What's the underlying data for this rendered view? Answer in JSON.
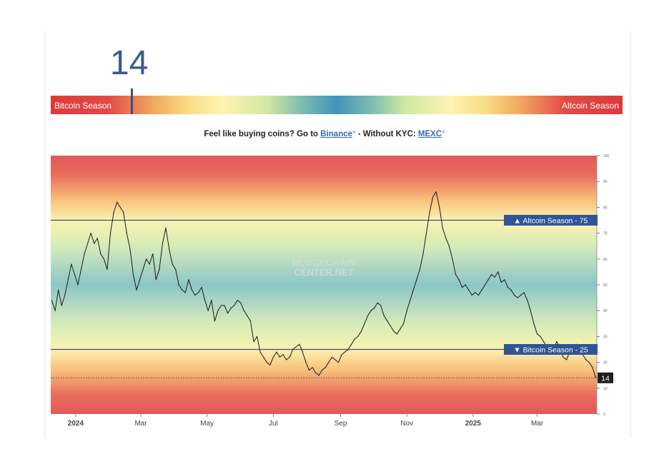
{
  "header": {
    "index_value": "14",
    "left_label": "Bitcoin Season",
    "right_label": "Altcoin Season"
  },
  "promo": {
    "lead": "Feel like buying coins? Go to ",
    "link1": "Binance",
    "asterisk": "*",
    "mid": " - Without KYC: ",
    "link2": "MEXC"
  },
  "colors": {
    "line": "#1a1a1a",
    "threshold_line": "#34528a",
    "badge_bg": "#2f5596",
    "current_badge_bg": "#1e1e1e",
    "bitcoin_zone": "#e05a5a",
    "altcoin_zone": "#e05a5a",
    "neutral_zone": "#86c4c4"
  },
  "chart_data": {
    "type": "line",
    "watermark": [
      "BL⊙CKCHAIN",
      "CENTER.NET"
    ],
    "ylim": [
      0,
      100
    ],
    "yticks": [
      0,
      10,
      20,
      30,
      40,
      50,
      60,
      70,
      80,
      90,
      100
    ],
    "ytick_labels": [
      "0",
      "10",
      "20",
      "30",
      "40",
      "50",
      "60",
      "70",
      "80",
      "90",
      "100"
    ],
    "xlim": [
      "2023-12-09",
      "2025-04-25"
    ],
    "xticks": [
      {
        "date": "2024-01-01",
        "label": "2024",
        "bold": true
      },
      {
        "date": "2024-03-01",
        "label": "Mar"
      },
      {
        "date": "2024-05-01",
        "label": "May"
      },
      {
        "date": "2024-07-01",
        "label": "Jul"
      },
      {
        "date": "2024-09-01",
        "label": "Sep"
      },
      {
        "date": "2024-11-01",
        "label": "Nov"
      },
      {
        "date": "2025-01-01",
        "label": "2025",
        "bold": true
      },
      {
        "date": "2025-03-01",
        "label": "Mar"
      }
    ],
    "thresholds": [
      {
        "value": 75,
        "label": "▲ Altcoin Season - 75"
      },
      {
        "value": 25,
        "label": "▼ Bitcoin Season - 25"
      }
    ],
    "current": {
      "value": 14,
      "label": "14"
    },
    "series": [
      {
        "x": [
          "2023-12-10",
          "2023-12-13",
          "2023-12-16",
          "2023-12-19",
          "2023-12-22",
          "2023-12-25",
          "2023-12-28",
          "2023-12-31",
          "2024-01-03",
          "2024-01-06",
          "2024-01-09",
          "2024-01-12",
          "2024-01-15",
          "2024-01-18",
          "2024-01-21",
          "2024-01-24",
          "2024-01-27",
          "2024-01-30",
          "2024-02-02",
          "2024-02-05",
          "2024-02-08",
          "2024-02-11",
          "2024-02-14",
          "2024-02-17",
          "2024-02-20",
          "2024-02-23",
          "2024-02-26",
          "2024-02-29",
          "2024-03-03",
          "2024-03-06",
          "2024-03-09",
          "2024-03-12",
          "2024-03-15",
          "2024-03-18",
          "2024-03-21",
          "2024-03-24",
          "2024-03-27",
          "2024-03-30",
          "2024-04-02",
          "2024-04-05",
          "2024-04-08",
          "2024-04-11",
          "2024-04-14",
          "2024-04-17",
          "2024-04-20",
          "2024-04-23",
          "2024-04-26",
          "2024-04-29",
          "2024-05-02",
          "2024-05-05",
          "2024-05-08",
          "2024-05-11",
          "2024-05-14",
          "2024-05-17",
          "2024-05-20",
          "2024-05-23",
          "2024-05-26",
          "2024-05-29",
          "2024-06-01",
          "2024-06-04",
          "2024-06-07",
          "2024-06-10",
          "2024-06-13",
          "2024-06-16",
          "2024-06-19",
          "2024-06-22",
          "2024-06-25",
          "2024-06-28",
          "2024-07-01",
          "2024-07-04",
          "2024-07-07",
          "2024-07-10",
          "2024-07-13",
          "2024-07-16",
          "2024-07-19",
          "2024-07-22",
          "2024-07-25",
          "2024-07-28",
          "2024-07-31",
          "2024-08-03",
          "2024-08-06",
          "2024-08-09",
          "2024-08-12",
          "2024-08-15",
          "2024-08-18",
          "2024-08-21",
          "2024-08-24",
          "2024-08-27",
          "2024-08-30",
          "2024-09-02",
          "2024-09-05",
          "2024-09-08",
          "2024-09-11",
          "2024-09-14",
          "2024-09-17",
          "2024-09-20",
          "2024-09-23",
          "2024-09-26",
          "2024-09-29",
          "2024-10-02",
          "2024-10-05",
          "2024-10-08",
          "2024-10-11",
          "2024-10-14",
          "2024-10-17",
          "2024-10-20",
          "2024-10-23",
          "2024-10-26",
          "2024-10-29",
          "2024-11-01",
          "2024-11-04",
          "2024-11-07",
          "2024-11-10",
          "2024-11-13",
          "2024-11-16",
          "2024-11-19",
          "2024-11-22",
          "2024-11-25",
          "2024-11-28",
          "2024-12-01",
          "2024-12-04",
          "2024-12-07",
          "2024-12-10",
          "2024-12-13",
          "2024-12-16",
          "2024-12-19",
          "2024-12-22",
          "2024-12-25",
          "2024-12-28",
          "2024-12-31",
          "2025-01-03",
          "2025-01-06",
          "2025-01-09",
          "2025-01-12",
          "2025-01-15",
          "2025-01-18",
          "2025-01-21",
          "2025-01-24",
          "2025-01-27",
          "2025-01-30",
          "2025-02-02",
          "2025-02-05",
          "2025-02-08",
          "2025-02-11",
          "2025-02-14",
          "2025-02-17",
          "2025-02-20",
          "2025-02-23",
          "2025-02-26",
          "2025-03-01",
          "2025-03-04",
          "2025-03-07",
          "2025-03-10",
          "2025-03-13",
          "2025-03-16",
          "2025-03-19",
          "2025-03-22",
          "2025-03-25",
          "2025-03-28",
          "2025-03-31",
          "2025-04-03",
          "2025-04-06",
          "2025-04-09",
          "2025-04-12",
          "2025-04-15",
          "2025-04-18",
          "2025-04-21",
          "2025-04-24"
        ],
        "y": [
          44,
          40,
          48,
          42,
          46,
          52,
          58,
          54,
          50,
          56,
          62,
          66,
          70,
          66,
          68,
          62,
          60,
          56,
          70,
          78,
          82,
          80,
          78,
          70,
          64,
          54,
          48,
          52,
          56,
          60,
          58,
          62,
          52,
          56,
          66,
          72,
          64,
          58,
          56,
          50,
          48,
          47,
          52,
          48,
          46,
          47,
          49,
          44,
          40,
          44,
          36,
          40,
          42,
          42,
          39,
          41,
          42,
          44,
          43,
          40,
          38,
          36,
          28,
          30,
          24,
          22,
          20,
          19,
          22,
          24,
          22,
          23,
          21,
          22,
          25,
          26,
          27,
          24,
          20,
          17,
          18,
          16,
          15,
          17,
          18,
          20,
          22,
          21,
          20,
          23,
          24,
          25,
          27,
          29,
          30,
          32,
          35,
          38,
          40,
          41,
          43,
          42,
          38,
          36,
          34,
          32,
          31,
          33,
          35,
          40,
          44,
          48,
          52,
          56,
          62,
          70,
          78,
          84,
          86,
          80,
          72,
          68,
          65,
          60,
          54,
          52,
          49,
          50,
          48,
          46,
          47,
          46,
          48,
          50,
          52,
          54,
          53,
          55,
          51,
          52,
          49,
          48,
          46,
          45,
          46,
          47,
          44,
          40,
          35,
          31,
          30,
          28,
          26,
          25,
          25,
          28,
          26,
          22,
          21,
          24,
          26,
          27,
          24,
          23,
          21,
          20,
          18,
          14
        ]
      }
    ]
  }
}
